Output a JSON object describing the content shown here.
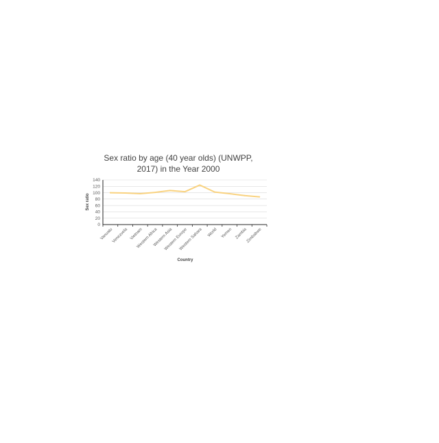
{
  "chart_data": {
    "type": "line",
    "title_lines": [
      "Sex ratio by age (40 year olds) (UNWPP,",
      "2017) in the Year 2000"
    ],
    "xlabel": "Country",
    "ylabel": "Sex ratio",
    "categories": [
      "Vanuatu",
      "Venezuela",
      "Vietnam",
      "Western Africa",
      "Western Asia",
      "Western Europe",
      "Western Sahara",
      "World",
      "Yemen",
      "Zambia",
      "Zimbabwe"
    ],
    "series": [
      {
        "values": [
          100,
          99,
          97,
          101,
          107,
          103,
          124,
          102,
          97,
          91,
          87
        ],
        "color": "#f9d27f"
      }
    ],
    "ylim": [
      0,
      140
    ],
    "yticks": [
      0,
      20,
      40,
      60,
      80,
      100,
      120,
      140
    ],
    "grid": true,
    "legend": "none"
  }
}
